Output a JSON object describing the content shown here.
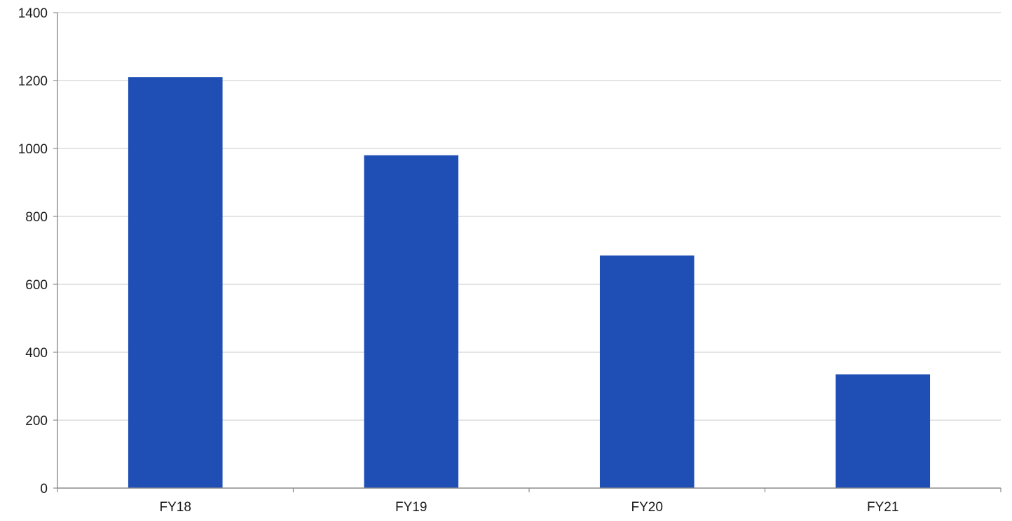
{
  "chart_data": {
    "type": "bar",
    "categories": [
      "FY18",
      "FY19",
      "FY20",
      "FY21"
    ],
    "values": [
      1210,
      980,
      685,
      335
    ],
    "title": "",
    "xlabel": "",
    "ylabel": "",
    "ylim": [
      0,
      1400
    ],
    "yticks": [
      0,
      200,
      400,
      600,
      800,
      1000,
      1200,
      1400
    ],
    "grid": true,
    "legend": "none",
    "bar_color": "#1f4fb5",
    "grid_color": "#d4d4d4",
    "axis_color": "#8c8c8c"
  }
}
